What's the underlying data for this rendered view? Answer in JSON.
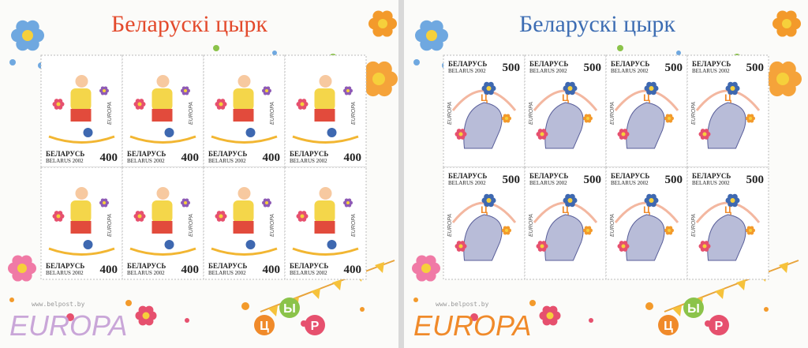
{
  "sheets": [
    {
      "title": "Беларускі цырк",
      "country": "БЕЛАРУСЬ",
      "country_latin": "BELARUS 2002",
      "value": 400,
      "stamp_logo": "EUROPA",
      "website": "www.belpost.by",
      "logo": "EUROPA",
      "balloons": [
        "Ц",
        "Ы",
        "Р"
      ]
    },
    {
      "title": "Беларускі цырк",
      "country": "БЕЛАРУСЬ",
      "country_latin": "BELARUS 2002",
      "value": 500,
      "stamp_logo": "EUROPA",
      "website": "www.belpost.by",
      "logo": "EUROPA",
      "balloons": [
        "Ц",
        "Ы",
        "Р"
      ]
    }
  ]
}
